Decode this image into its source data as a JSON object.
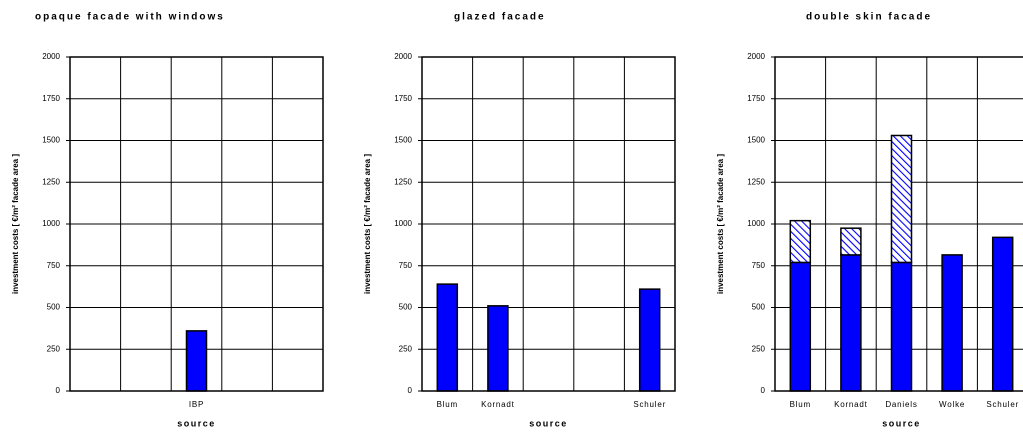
{
  "chart_data": [
    {
      "type": "bar",
      "title": "opaque facade with windows",
      "x_label": "source",
      "y_label": "investment costs  [ €/m² facade area ]",
      "categories": [
        null,
        null,
        "IBP",
        null,
        null
      ],
      "series": [
        {
          "color": "#0000ff",
          "values": [
            null,
            null,
            360,
            null,
            null
          ]
        }
      ],
      "ylim": [
        0,
        2000
      ],
      "yticks": [
        0,
        250,
        500,
        750,
        1000,
        1250,
        1500,
        1750,
        2000
      ],
      "grid": true
    },
    {
      "type": "bar",
      "title": "glazed facade",
      "x_label": "source",
      "y_label": "investment costs  [ €/m² facade area ]",
      "categories": [
        "Blum",
        "Kornadt",
        null,
        null,
        "Schuler"
      ],
      "series": [
        {
          "color": "#0000ff",
          "values": [
            640,
            510,
            null,
            null,
            610
          ]
        }
      ],
      "ylim": [
        0,
        2000
      ],
      "yticks": [
        0,
        250,
        500,
        750,
        1000,
        1250,
        1500,
        1750,
        2000
      ],
      "grid": true
    },
    {
      "type": "bar",
      "title": "double skin facade",
      "x_label": "source",
      "y_label": "investment costs  [ €/m² facade area ]",
      "categories": [
        "Blum",
        "Kornadt",
        "Daniels",
        "Wolke",
        "Schuler"
      ],
      "series": [
        {
          "color": "#0000ff",
          "values": [
            770,
            815,
            770,
            815,
            920
          ]
        },
        {
          "color": "#0000ff",
          "pattern": "hatch",
          "values": [
            250,
            160,
            760,
            null,
            null
          ]
        }
      ],
      "ylim": [
        0,
        2000
      ],
      "yticks": [
        0,
        250,
        500,
        750,
        1000,
        1250,
        1500,
        1750,
        2000
      ],
      "grid": true
    }
  ]
}
